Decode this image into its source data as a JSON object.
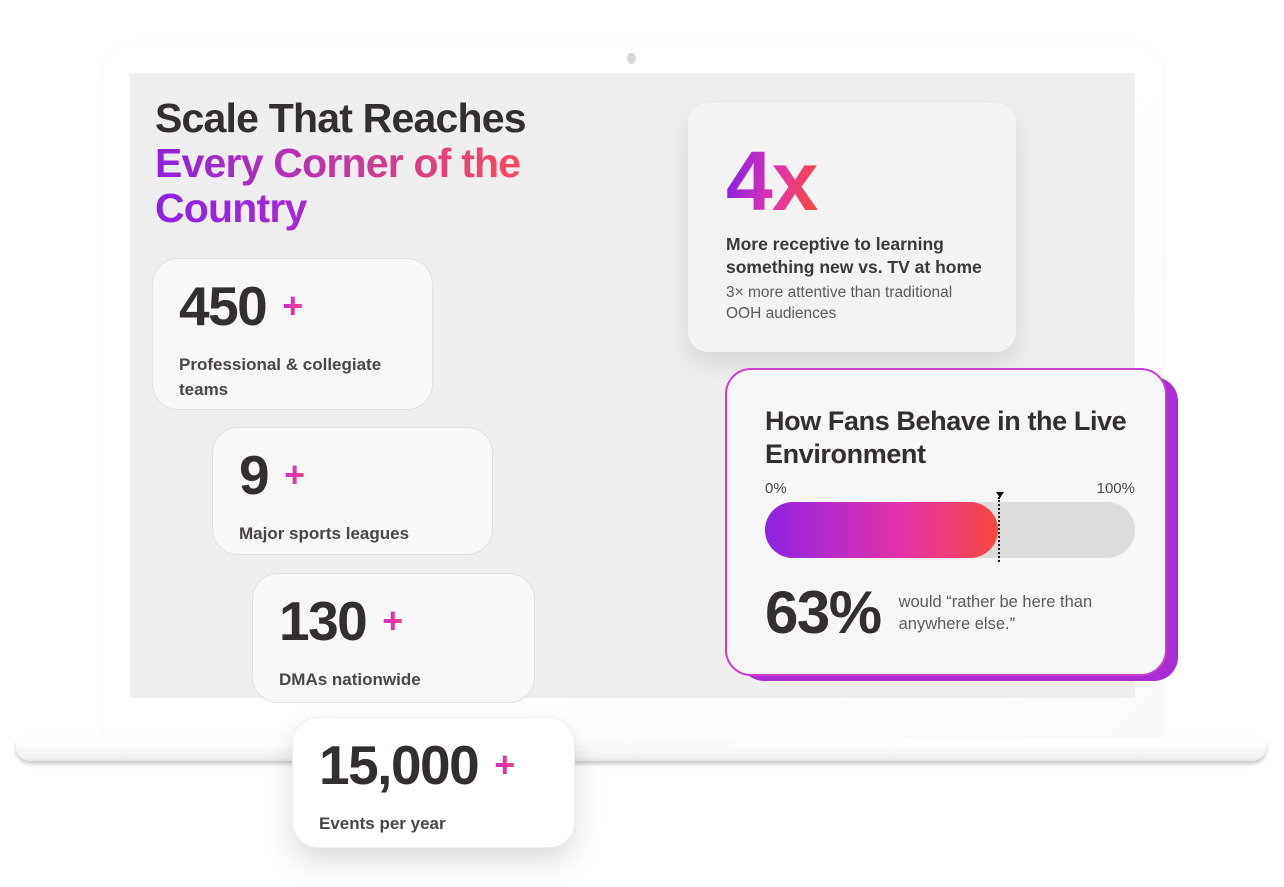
{
  "slide": {
    "heading": {
      "line1": "Scale That Reaches",
      "line2": "Every Corner of the",
      "line3": "Country"
    },
    "stat_cards": [
      {
        "value": "450",
        "plus": "+",
        "label": "Professional & collegiate\nteams"
      },
      {
        "value": "9",
        "plus": "+",
        "label": "Major sports leagues"
      },
      {
        "value": "130",
        "plus": "+",
        "label": "DMAs nationwide"
      },
      {
        "value": "15,000",
        "plus": "+",
        "label": "Events per year"
      }
    ],
    "receptive_card": {
      "value": "4x",
      "bold_text": "More receptive to learning\nsomething new vs. TV at home",
      "sub_text": "3× more attentive than traditional\nOOH audiences"
    },
    "fans_card": {
      "title": "How Fans Behave in the Live\nEnvironment",
      "scale_min": "0%",
      "scale_max": "100%",
      "percent_fill": 63,
      "percent_value": "63%",
      "caption": "would “rather be here than\nanywhere else.”"
    }
  },
  "colors": {
    "heading_dark": "#322e32",
    "grad_purple": "#8e22e2",
    "grad_magenta": "#e233ab",
    "grad_red": "#fb4a5e",
    "grad_orange": "#f9473f",
    "grad_country_end": "#cf2fc0",
    "plus_left": "#c92bd1",
    "plus_right": "#f63f82",
    "fans_border": "#cb3ccf",
    "fans_shadow": "#ab2bd5",
    "bar_track": "#dcdcdc",
    "card_border": "#e1dfe0",
    "screen_bg": "#efeeee",
    "label_gray": "#4a4547",
    "muted_gray": "#5d595d"
  }
}
